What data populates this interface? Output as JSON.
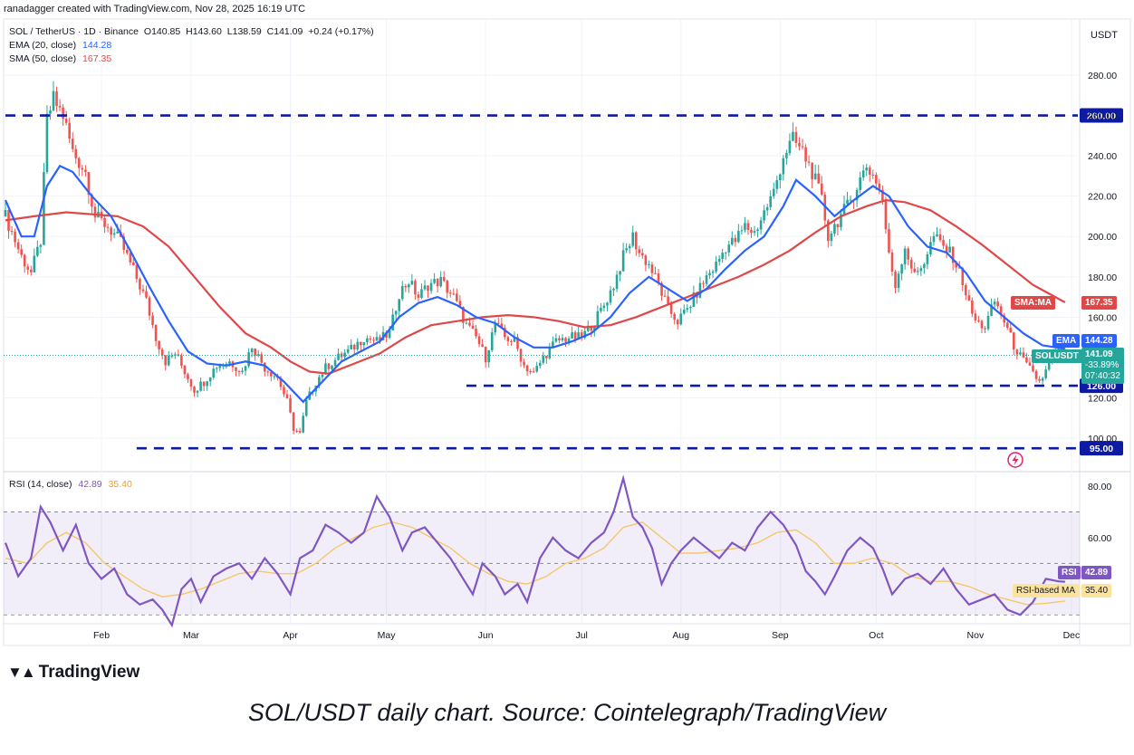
{
  "watermark": "ranadagger created with TradingView.com, Nov 28, 2025 16:19 UTC",
  "header": {
    "symbol": "SOL / TetherUS · 1D · Binance",
    "open_label": "O",
    "open": "140.85",
    "high_label": "H",
    "high": "143.60",
    "low_label": "L",
    "low": "138.59",
    "close_label": "C",
    "close": "141.09",
    "change": "+0.24 (+0.17%)",
    "ema_label": "EMA (20, close)",
    "ema_value": "144.28",
    "sma_label": "SMA (50, close)",
    "sma_value": "167.35",
    "rsi_label": "RSI (14, close)",
    "rsi_value": "42.89",
    "rsi_ma_value": "35.40"
  },
  "currency": "USDT",
  "brand": "TradingView",
  "caption": "SOL/USDT daily chart. Source: Cointelegraph/TradingView",
  "colors": {
    "up": "#26a69a",
    "down": "#ef5350",
    "ema": "#2962ff",
    "sma": "#e04848",
    "rsi": "#7e57c2",
    "rsi_ma": "#f5c76b",
    "level": "#0d1aa3"
  },
  "chart_data": {
    "type": "candlestick",
    "title": "SOL / TetherUS · 1D · Binance",
    "ylim": [
      90,
      300
    ],
    "y_ticks": [
      100,
      120,
      140,
      160,
      180,
      200,
      220,
      240,
      260,
      280
    ],
    "y_tick_labels": [
      "100.00",
      "120.00",
      "140.00",
      "160.00",
      "180.00",
      "200.00",
      "220.00",
      "240.00",
      "260.00",
      "280.00"
    ],
    "x_ticks": [
      "Feb",
      "Mar",
      "Apr",
      "May",
      "Jun",
      "Jul",
      "Aug",
      "Sep",
      "Oct",
      "Nov",
      "Dec"
    ],
    "x_tick_days": [
      31,
      59,
      90,
      120,
      151,
      181,
      212,
      243,
      273,
      304,
      334
    ],
    "first_day": 1,
    "last_day": 332,
    "horizontal_levels": [
      {
        "value": 260,
        "label": "260.00",
        "from_day": 1
      },
      {
        "value": 126,
        "label": "126.00",
        "from_day": 145
      },
      {
        "value": 95,
        "label": "95.00",
        "from_day": 42
      }
    ],
    "price_anchors": [
      [
        1,
        210
      ],
      [
        6,
        190
      ],
      [
        9,
        182
      ],
      [
        12,
        198
      ],
      [
        14,
        258
      ],
      [
        16,
        268
      ],
      [
        19,
        260
      ],
      [
        22,
        242
      ],
      [
        26,
        232
      ],
      [
        29,
        210
      ],
      [
        33,
        205
      ],
      [
        37,
        197
      ],
      [
        41,
        183
      ],
      [
        45,
        168
      ],
      [
        48,
        150
      ],
      [
        51,
        138
      ],
      [
        54,
        142
      ],
      [
        57,
        133
      ],
      [
        60,
        124
      ],
      [
        63,
        128
      ],
      [
        67,
        136
      ],
      [
        71,
        138
      ],
      [
        75,
        133
      ],
      [
        78,
        146
      ],
      [
        82,
        135
      ],
      [
        86,
        130
      ],
      [
        89,
        118
      ],
      [
        91,
        105
      ],
      [
        93,
        102
      ],
      [
        95,
        118
      ],
      [
        98,
        128
      ],
      [
        101,
        135
      ],
      [
        105,
        140
      ],
      [
        109,
        144
      ],
      [
        113,
        150
      ],
      [
        117,
        148
      ],
      [
        121,
        152
      ],
      [
        124,
        172
      ],
      [
        127,
        178
      ],
      [
        130,
        170
      ],
      [
        133,
        176
      ],
      [
        137,
        178
      ],
      [
        141,
        170
      ],
      [
        145,
        156
      ],
      [
        148,
        150
      ],
      [
        151,
        140
      ],
      [
        154,
        157
      ],
      [
        157,
        150
      ],
      [
        160,
        148
      ],
      [
        163,
        136
      ],
      [
        166,
        132
      ],
      [
        169,
        140
      ],
      [
        173,
        148
      ],
      [
        177,
        150
      ],
      [
        181,
        150
      ],
      [
        185,
        158
      ],
      [
        188,
        166
      ],
      [
        191,
        176
      ],
      [
        194,
        190
      ],
      [
        197,
        200
      ],
      [
        199,
        192
      ],
      [
        202,
        186
      ],
      [
        205,
        176
      ],
      [
        208,
        164
      ],
      [
        211,
        158
      ],
      [
        214,
        164
      ],
      [
        217,
        172
      ],
      [
        220,
        180
      ],
      [
        223,
        186
      ],
      [
        226,
        195
      ],
      [
        229,
        198
      ],
      [
        232,
        205
      ],
      [
        235,
        202
      ],
      [
        238,
        212
      ],
      [
        241,
        222
      ],
      [
        244,
        240
      ],
      [
        247,
        248
      ],
      [
        250,
        242
      ],
      [
        253,
        232
      ],
      [
        256,
        218
      ],
      [
        258,
        200
      ],
      [
        261,
        208
      ],
      [
        264,
        215
      ],
      [
        267,
        225
      ],
      [
        270,
        235
      ],
      [
        273,
        228
      ],
      [
        275,
        218
      ],
      [
        277,
        190
      ],
      [
        279,
        176
      ],
      [
        282,
        195
      ],
      [
        285,
        180
      ],
      [
        288,
        188
      ],
      [
        291,
        200
      ],
      [
        294,
        195
      ],
      [
        297,
        190
      ],
      [
        300,
        178
      ],
      [
        302,
        166
      ],
      [
        304,
        158
      ],
      [
        307,
        155
      ],
      [
        310,
        168
      ],
      [
        313,
        158
      ],
      [
        316,
        146
      ],
      [
        319,
        138
      ],
      [
        322,
        132
      ],
      [
        324,
        128
      ],
      [
        326,
        133
      ],
      [
        328,
        140
      ],
      [
        330,
        143
      ],
      [
        332,
        141
      ]
    ],
    "ema": [
      [
        1,
        218
      ],
      [
        6,
        200
      ],
      [
        10,
        200
      ],
      [
        14,
        225
      ],
      [
        18,
        235
      ],
      [
        22,
        232
      ],
      [
        28,
        220
      ],
      [
        34,
        210
      ],
      [
        40,
        193
      ],
      [
        46,
        175
      ],
      [
        52,
        158
      ],
      [
        58,
        143
      ],
      [
        64,
        137
      ],
      [
        70,
        136
      ],
      [
        76,
        138
      ],
      [
        82,
        136
      ],
      [
        88,
        128
      ],
      [
        94,
        118
      ],
      [
        100,
        128
      ],
      [
        106,
        138
      ],
      [
        112,
        143
      ],
      [
        118,
        148
      ],
      [
        124,
        160
      ],
      [
        130,
        167
      ],
      [
        136,
        170
      ],
      [
        142,
        166
      ],
      [
        148,
        160
      ],
      [
        154,
        157
      ],
      [
        160,
        150
      ],
      [
        166,
        145
      ],
      [
        172,
        145
      ],
      [
        178,
        148
      ],
      [
        184,
        152
      ],
      [
        190,
        160
      ],
      [
        196,
        172
      ],
      [
        202,
        180
      ],
      [
        208,
        174
      ],
      [
        214,
        168
      ],
      [
        220,
        174
      ],
      [
        226,
        184
      ],
      [
        232,
        193
      ],
      [
        238,
        200
      ],
      [
        244,
        215
      ],
      [
        248,
        228
      ],
      [
        254,
        220
      ],
      [
        260,
        210
      ],
      [
        266,
        218
      ],
      [
        272,
        225
      ],
      [
        277,
        220
      ],
      [
        283,
        205
      ],
      [
        289,
        195
      ],
      [
        295,
        192
      ],
      [
        301,
        182
      ],
      [
        307,
        168
      ],
      [
        313,
        160
      ],
      [
        319,
        152
      ],
      [
        325,
        146
      ],
      [
        332,
        144.3
      ]
    ],
    "sma": [
      [
        1,
        208
      ],
      [
        10,
        210
      ],
      [
        20,
        212
      ],
      [
        28,
        211
      ],
      [
        36,
        210
      ],
      [
        44,
        205
      ],
      [
        52,
        195
      ],
      [
        60,
        180
      ],
      [
        68,
        165
      ],
      [
        76,
        152
      ],
      [
        84,
        145
      ],
      [
        90,
        138
      ],
      [
        96,
        133
      ],
      [
        102,
        132
      ],
      [
        110,
        137
      ],
      [
        118,
        142
      ],
      [
        126,
        150
      ],
      [
        134,
        156
      ],
      [
        142,
        158
      ],
      [
        150,
        160
      ],
      [
        158,
        161
      ],
      [
        166,
        160
      ],
      [
        174,
        158
      ],
      [
        182,
        155
      ],
      [
        190,
        156
      ],
      [
        198,
        160
      ],
      [
        206,
        165
      ],
      [
        214,
        170
      ],
      [
        222,
        175
      ],
      [
        230,
        180
      ],
      [
        238,
        186
      ],
      [
        246,
        193
      ],
      [
        254,
        202
      ],
      [
        262,
        210
      ],
      [
        270,
        215
      ],
      [
        276,
        218
      ],
      [
        282,
        217
      ],
      [
        290,
        213
      ],
      [
        298,
        205
      ],
      [
        306,
        196
      ],
      [
        314,
        186
      ],
      [
        322,
        176
      ],
      [
        332,
        167.35
      ]
    ],
    "rsi": {
      "ylim": [
        25,
        85
      ],
      "y_ticks": [
        40,
        60,
        80
      ],
      "y_tick_labels": [
        "40.00",
        "60.00",
        "80.00"
      ],
      "band": [
        30,
        70
      ],
      "mid": 50,
      "anchors": [
        [
          1,
          58
        ],
        [
          5,
          45
        ],
        [
          9,
          52
        ],
        [
          12,
          72
        ],
        [
          15,
          66
        ],
        [
          19,
          55
        ],
        [
          23,
          65
        ],
        [
          27,
          50
        ],
        [
          31,
          44
        ],
        [
          35,
          48
        ],
        [
          39,
          38
        ],
        [
          43,
          34
        ],
        [
          47,
          36
        ],
        [
          50,
          32
        ],
        [
          53,
          26
        ],
        [
          56,
          40
        ],
        [
          59,
          44
        ],
        [
          62,
          35
        ],
        [
          66,
          45
        ],
        [
          70,
          48
        ],
        [
          74,
          50
        ],
        [
          78,
          44
        ],
        [
          82,
          52
        ],
        [
          86,
          46
        ],
        [
          90,
          38
        ],
        [
          93,
          52
        ],
        [
          97,
          55
        ],
        [
          101,
          65
        ],
        [
          105,
          62
        ],
        [
          109,
          58
        ],
        [
          113,
          62
        ],
        [
          117,
          76
        ],
        [
          121,
          68
        ],
        [
          125,
          55
        ],
        [
          128,
          62
        ],
        [
          132,
          64
        ],
        [
          136,
          58
        ],
        [
          140,
          52
        ],
        [
          144,
          44
        ],
        [
          147,
          38
        ],
        [
          150,
          50
        ],
        [
          154,
          45
        ],
        [
          157,
          38
        ],
        [
          161,
          42
        ],
        [
          164,
          35
        ],
        [
          168,
          52
        ],
        [
          172,
          60
        ],
        [
          176,
          55
        ],
        [
          180,
          52
        ],
        [
          184,
          58
        ],
        [
          188,
          62
        ],
        [
          191,
          70
        ],
        [
          194,
          83
        ],
        [
          197,
          68
        ],
        [
          200,
          64
        ],
        [
          203,
          56
        ],
        [
          206,
          42
        ],
        [
          209,
          50
        ],
        [
          212,
          55
        ],
        [
          216,
          60
        ],
        [
          220,
          56
        ],
        [
          224,
          52
        ],
        [
          228,
          58
        ],
        [
          232,
          55
        ],
        [
          236,
          64
        ],
        [
          240,
          70
        ],
        [
          244,
          65
        ],
        [
          248,
          57
        ],
        [
          251,
          47
        ],
        [
          254,
          43
        ],
        [
          257,
          38
        ],
        [
          260,
          45
        ],
        [
          264,
          55
        ],
        [
          268,
          60
        ],
        [
          272,
          56
        ],
        [
          275,
          48
        ],
        [
          278,
          38
        ],
        [
          282,
          44
        ],
        [
          286,
          46
        ],
        [
          290,
          42
        ],
        [
          294,
          48
        ],
        [
          298,
          40
        ],
        [
          302,
          34
        ],
        [
          306,
          36
        ],
        [
          310,
          38
        ],
        [
          314,
          32
        ],
        [
          318,
          30
        ],
        [
          322,
          35
        ],
        [
          326,
          44
        ],
        [
          330,
          43
        ],
        [
          332,
          42.89
        ]
      ],
      "ma": [
        [
          1,
          52
        ],
        [
          8,
          50
        ],
        [
          14,
          58
        ],
        [
          20,
          62
        ],
        [
          26,
          58
        ],
        [
          32,
          50
        ],
        [
          38,
          45
        ],
        [
          44,
          40
        ],
        [
          50,
          37
        ],
        [
          56,
          38
        ],
        [
          62,
          40
        ],
        [
          68,
          43
        ],
        [
          74,
          46
        ],
        [
          80,
          47
        ],
        [
          86,
          46
        ],
        [
          92,
          46
        ],
        [
          98,
          50
        ],
        [
          104,
          56
        ],
        [
          110,
          60
        ],
        [
          116,
          64
        ],
        [
          122,
          66
        ],
        [
          128,
          64
        ],
        [
          134,
          60
        ],
        [
          140,
          56
        ],
        [
          146,
          50
        ],
        [
          152,
          46
        ],
        [
          158,
          43
        ],
        [
          164,
          42
        ],
        [
          170,
          45
        ],
        [
          176,
          50
        ],
        [
          182,
          52
        ],
        [
          188,
          56
        ],
        [
          194,
          64
        ],
        [
          200,
          66
        ],
        [
          206,
          60
        ],
        [
          212,
          54
        ],
        [
          218,
          54
        ],
        [
          224,
          55
        ],
        [
          230,
          56
        ],
        [
          236,
          58
        ],
        [
          242,
          62
        ],
        [
          248,
          63
        ],
        [
          254,
          58
        ],
        [
          260,
          50
        ],
        [
          266,
          50
        ],
        [
          272,
          52
        ],
        [
          278,
          50
        ],
        [
          284,
          45
        ],
        [
          290,
          43
        ],
        [
          296,
          43
        ],
        [
          302,
          41
        ],
        [
          308,
          38
        ],
        [
          314,
          36
        ],
        [
          320,
          34
        ],
        [
          326,
          34.5
        ],
        [
          332,
          35.4
        ]
      ]
    }
  },
  "axis_tags": {
    "sma_tag": "SMA:MA",
    "sma_value": "167.35",
    "ema_tag": "EMA",
    "ema_value": "144.28",
    "price_tag": "SOLUSDT",
    "price_value": "141.09",
    "price_change": "-33.89%",
    "countdown": "07:40:32",
    "rsi_tag": "RSI",
    "rsi_value": "42.89",
    "rsi_ma_tag": "RSI-based MA",
    "rsi_ma_value": "35.40"
  }
}
